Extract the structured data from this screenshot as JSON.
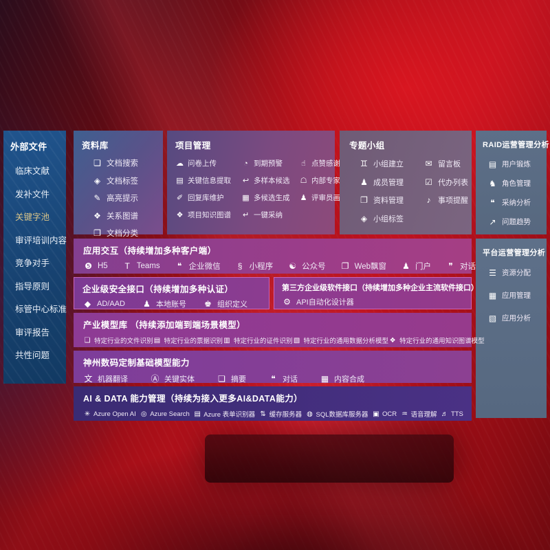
{
  "colors": {
    "background_red": "#b5101b",
    "sidebar_blue": "#1c4c82",
    "panel_purple": "#8c3f90",
    "panel_slate": "#5d6e87",
    "ai_indigo": "#41307e",
    "highlight_gold": "#d9c489",
    "panel_border_pink": "#f482d8"
  },
  "sidebar": {
    "title": "外部文件",
    "items": [
      {
        "label": "临床文献"
      },
      {
        "label": "发补文件"
      },
      {
        "label": "关键字池",
        "color": "#d9c489"
      },
      {
        "label": "审评培训内容"
      },
      {
        "label": "竞争对手"
      },
      {
        "label": "指导原则"
      },
      {
        "label": "标管中心标准"
      },
      {
        "label": "审评报告"
      },
      {
        "label": "共性问题"
      }
    ]
  },
  "panels": {
    "library": {
      "title": "资料库",
      "items": [
        {
          "icon_name": "doc-search-icon",
          "icon": "❏",
          "label": "文档搜索"
        },
        {
          "icon_name": "doc-tag-icon",
          "icon": "◈",
          "label": "文档标签"
        },
        {
          "icon_name": "highlight-pen-icon",
          "icon": "✎",
          "label": "高亮提示"
        },
        {
          "icon_name": "relation-graph-icon",
          "icon": "❖",
          "label": "关系图谱"
        },
        {
          "icon_name": "doc-category-icon",
          "icon": "❐",
          "label": "文档分类"
        }
      ]
    },
    "project": {
      "title": "项目管理",
      "items": [
        {
          "icon_name": "cloud-upload-icon",
          "icon": "☁",
          "label": "问卷上传"
        },
        {
          "icon_name": "alarm-icon",
          "icon": "◔",
          "label": "到期预警"
        },
        {
          "icon_name": "thumbs-up-icon",
          "icon": "☝",
          "label": "点赞感谢"
        },
        {
          "icon_name": "info-extract-icon",
          "icon": "▤",
          "label": "关键信息提取"
        },
        {
          "icon_name": "multi-sample-icon",
          "icon": "↩",
          "label": "多样本候选"
        },
        {
          "icon_name": "expert-ranking-icon",
          "icon": "☖",
          "label": "内部专家排名"
        },
        {
          "icon_name": "reply-maintain-icon",
          "icon": "✐",
          "label": "回复库维护"
        },
        {
          "icon_name": "multi-generate-icon",
          "icon": "▦",
          "label": "多候选生成"
        },
        {
          "icon_name": "reviewer-profile-icon",
          "icon": "♟",
          "label": "评审员画像"
        },
        {
          "icon_name": "knowledge-graph-icon",
          "icon": "❖",
          "label": "项目知识图谱"
        },
        {
          "icon_name": "one-click-adopt-icon",
          "icon": "↵",
          "label": "一键采纳"
        }
      ]
    },
    "group": {
      "title": "专题小组",
      "items": [
        {
          "icon_name": "group-create-icon",
          "icon": "♊",
          "label": "小组建立"
        },
        {
          "icon_name": "message-board-icon",
          "icon": "✉",
          "label": "留言板"
        },
        {
          "icon_name": "member-manage-icon",
          "icon": "♟",
          "label": "成员管理"
        },
        {
          "icon_name": "todo-list-icon",
          "icon": "☑",
          "label": "代办列表"
        },
        {
          "icon_name": "material-manage-icon",
          "icon": "❐",
          "label": "资料管理"
        },
        {
          "icon_name": "reminder-bell-icon",
          "icon": "♪",
          "label": "事项提醒"
        },
        {
          "icon_name": "group-tag-icon",
          "icon": "◈",
          "label": "小组标签"
        }
      ]
    },
    "raid": {
      "title": "RAID运营管理分析",
      "items": [
        {
          "icon_name": "user-card-icon",
          "icon": "▤",
          "label": "用户锻炼"
        },
        {
          "icon_name": "role-manage-icon",
          "icon": "♞",
          "label": "角色管理"
        },
        {
          "icon_name": "adoption-analysis-icon",
          "icon": "❝",
          "label": "采纳分析"
        },
        {
          "icon_name": "issue-trend-icon",
          "icon": "↗",
          "label": "问题趋势"
        }
      ]
    },
    "platform": {
      "title": "平台运营管理分析",
      "items": [
        {
          "icon_name": "resource-allocation-icon",
          "icon": "☰",
          "label": "资源分配"
        },
        {
          "icon_name": "app-manage-icon",
          "icon": "▦",
          "label": "应用管理"
        },
        {
          "icon_name": "app-analysis-icon",
          "icon": "▧",
          "label": "应用分析"
        }
      ]
    },
    "interact": {
      "title": "应用交互（持续增加多种客户端）",
      "items": [
        {
          "icon_name": "h5-icon",
          "icon": "❺",
          "label": "H5"
        },
        {
          "icon_name": "teams-icon",
          "icon": "T",
          "label": "Teams"
        },
        {
          "icon_name": "wechat-work-icon",
          "icon": "❝",
          "label": "企业微信"
        },
        {
          "icon_name": "miniprogram-icon",
          "icon": "§",
          "label": "小程序"
        },
        {
          "icon_name": "official-account-icon",
          "icon": "☯",
          "label": "公众号"
        },
        {
          "icon_name": "web-popup-icon",
          "icon": "❐",
          "label": "Web飘窗"
        },
        {
          "icon_name": "portal-icon",
          "icon": "♟",
          "label": "门户"
        },
        {
          "icon_name": "dialog-icon",
          "icon": "❞",
          "label": "对话"
        }
      ]
    },
    "security": {
      "title": "企业级安全接口（持续增加多种认证）",
      "items": [
        {
          "icon_name": "ad-aad-icon",
          "icon": "◆",
          "label": "AD/AAD"
        },
        {
          "icon_name": "local-account-icon",
          "icon": "♟",
          "label": "本地账号"
        },
        {
          "icon_name": "org-define-icon",
          "icon": "♚",
          "label": "组织定义"
        }
      ]
    },
    "third": {
      "title": "第三方企业级软件接口（持续增加多种企业主流软件接口）",
      "items": [
        {
          "icon_name": "api-designer-gear-icon",
          "icon": "⚙",
          "label": "API自动化设计器"
        }
      ]
    },
    "industry": {
      "title": "产业模型库 （持续添加端到端场景模型）",
      "items": [
        {
          "icon_name": "file-recognition-icon",
          "icon": "❏",
          "label": "特定行业的文件识别"
        },
        {
          "icon_name": "invoice-recognition-icon",
          "icon": "▤",
          "label": "特定行业的票据识别"
        },
        {
          "icon_name": "certificate-recognition-icon",
          "icon": "▥",
          "label": "特定行业的证件识别"
        },
        {
          "icon_name": "data-analysis-model-icon",
          "icon": "▧",
          "label": "特定行业的通用数据分析模型"
        },
        {
          "icon_name": "knowledge-graph-model-icon",
          "icon": "❖",
          "label": "特定行业的通用知识图谱模型"
        }
      ]
    },
    "shenzhou": {
      "title": "神州数码定制基础模型能力",
      "items": [
        {
          "icon_name": "machine-translation-icon",
          "icon": "文",
          "label": "机器翻译"
        },
        {
          "icon_name": "key-entity-icon",
          "icon": "Ⓐ",
          "label": "关键实体"
        },
        {
          "icon_name": "summary-icon",
          "icon": "❏",
          "label": "摘要"
        },
        {
          "icon_name": "dialogue-icon",
          "icon": "❝",
          "label": "对话"
        },
        {
          "icon_name": "content-synthesis-icon",
          "icon": "▦",
          "label": "内容合成"
        }
      ]
    },
    "aidata": {
      "title": "AI & DATA 能力管理（持续为接入更多AI&DATA能力）",
      "items": [
        {
          "icon_name": "azure-openai-icon",
          "icon": "✳",
          "label": "Azure Open AI"
        },
        {
          "icon_name": "azure-search-icon",
          "icon": "◎",
          "label": "Azure Search"
        },
        {
          "icon_name": "azure-form-recognizer-icon",
          "icon": "▤",
          "label": "Azure 表单识别器"
        },
        {
          "icon_name": "cache-server-icon",
          "icon": "⇅",
          "label": "缓存服务器"
        },
        {
          "icon_name": "sql-database-icon",
          "icon": "◍",
          "label": "SQL数据库服务器"
        },
        {
          "icon_name": "ocr-icon",
          "icon": "▣",
          "label": "OCR"
        },
        {
          "icon_name": "speech-understanding-icon",
          "icon": "♒",
          "label": "语音理解"
        },
        {
          "icon_name": "tts-icon",
          "icon": "♬",
          "label": "TTS"
        }
      ]
    }
  }
}
